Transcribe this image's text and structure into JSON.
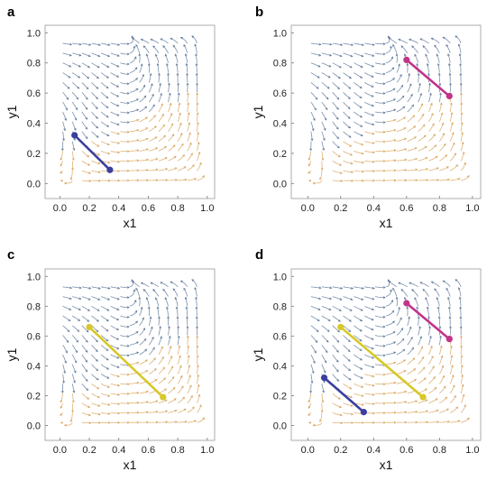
{
  "chart_data": [
    {
      "type": "scatter",
      "panel_label": "a",
      "xlabel": "x1",
      "ylabel": "y1",
      "xlim": [
        -0.1,
        1.05
      ],
      "ylim": [
        -0.1,
        1.05
      ],
      "xticks": [
        "0.0",
        "0.2",
        "0.4",
        "0.6",
        "0.8",
        "1.0"
      ],
      "yticks": [
        "0.0",
        "0.2",
        "0.4",
        "0.6",
        "0.8",
        "1.0"
      ],
      "segments": [
        {
          "color": "#3b3fa0",
          "points": [
            [
              0.1,
              0.32
            ],
            [
              0.34,
              0.09
            ]
          ]
        }
      ]
    },
    {
      "type": "scatter",
      "panel_label": "b",
      "xlabel": "x1",
      "ylabel": "y1",
      "xlim": [
        -0.1,
        1.05
      ],
      "ylim": [
        -0.1,
        1.05
      ],
      "xticks": [
        "0.0",
        "0.2",
        "0.4",
        "0.6",
        "0.8",
        "1.0"
      ],
      "yticks": [
        "0.0",
        "0.2",
        "0.4",
        "0.6",
        "0.8",
        "1.0"
      ],
      "segments": [
        {
          "color": "#c2338a",
          "points": [
            [
              0.6,
              0.82
            ],
            [
              0.86,
              0.58
            ]
          ]
        }
      ]
    },
    {
      "type": "scatter",
      "panel_label": "c",
      "xlabel": "x1",
      "ylabel": "y1",
      "xlim": [
        -0.1,
        1.05
      ],
      "ylim": [
        -0.1,
        1.05
      ],
      "xticks": [
        "0.0",
        "0.2",
        "0.4",
        "0.6",
        "0.8",
        "1.0"
      ],
      "yticks": [
        "0.0",
        "0.2",
        "0.4",
        "0.6",
        "0.8",
        "1.0"
      ],
      "segments": [
        {
          "color": "#d8c828",
          "points": [
            [
              0.2,
              0.66
            ],
            [
              0.7,
              0.19
            ]
          ]
        }
      ]
    },
    {
      "type": "scatter",
      "panel_label": "d",
      "xlabel": "x1",
      "ylabel": "y1",
      "xlim": [
        -0.1,
        1.05
      ],
      "ylim": [
        -0.1,
        1.05
      ],
      "xticks": [
        "0.0",
        "0.2",
        "0.4",
        "0.6",
        "0.8",
        "1.0"
      ],
      "yticks": [
        "0.0",
        "0.2",
        "0.4",
        "0.6",
        "0.8",
        "1.0"
      ],
      "segments": [
        {
          "color": "#3b3fa0",
          "points": [
            [
              0.1,
              0.32
            ],
            [
              0.34,
              0.09
            ]
          ]
        },
        {
          "color": "#c2338a",
          "points": [
            [
              0.6,
              0.82
            ],
            [
              0.86,
              0.58
            ]
          ]
        },
        {
          "color": "#d8c828",
          "points": [
            [
              0.2,
              0.66
            ],
            [
              0.7,
              0.19
            ]
          ]
        }
      ]
    }
  ],
  "colors": {
    "streamline_blue": "#4f6b8f",
    "streamline_orange": "#d49a4a",
    "frame": "#9a9a9a"
  }
}
